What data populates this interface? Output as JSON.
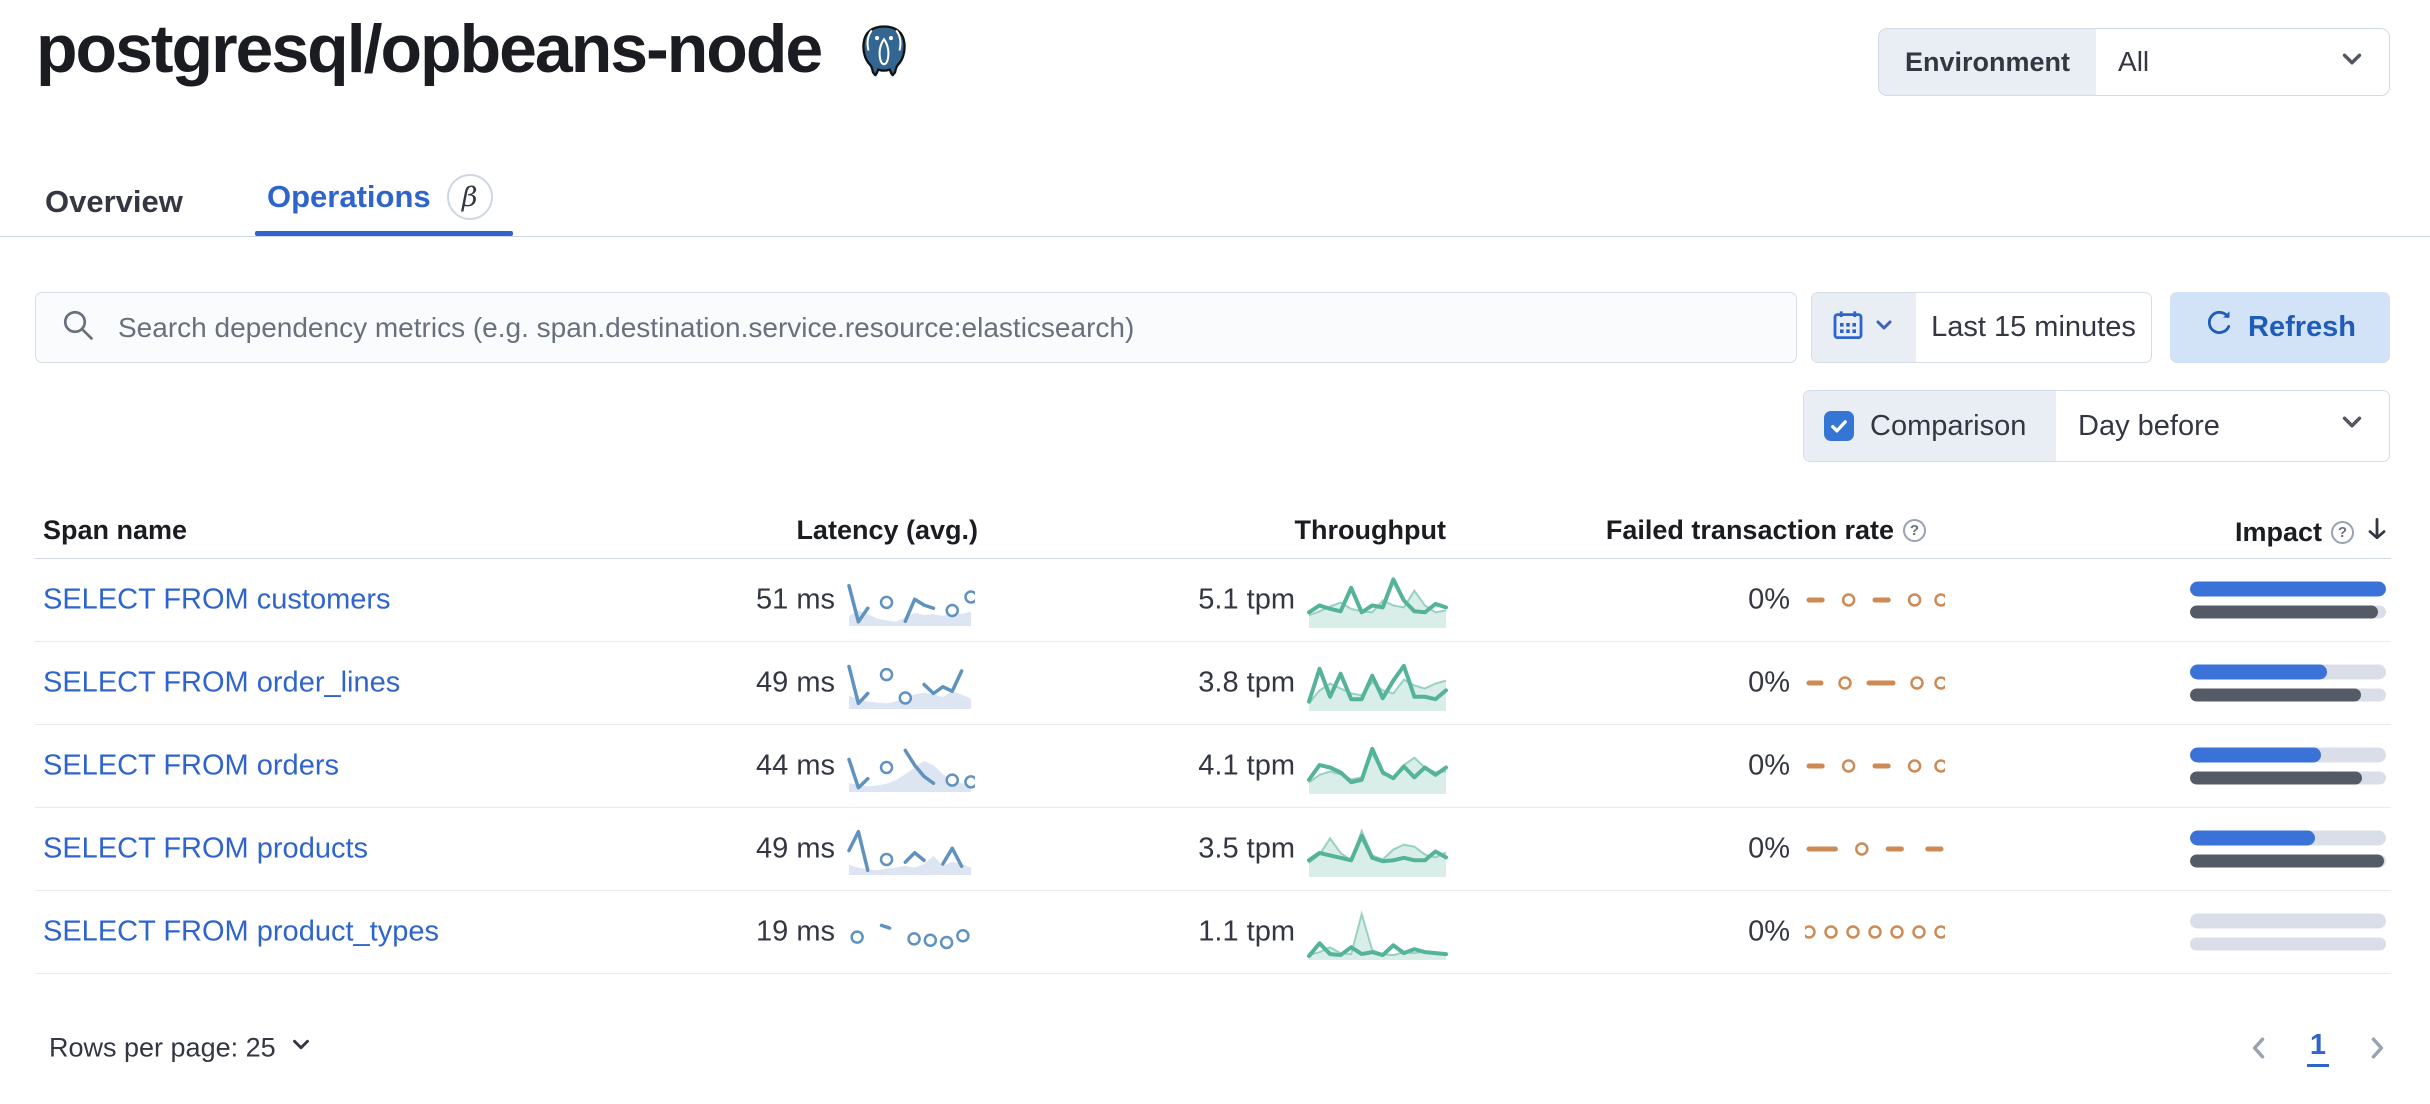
{
  "header": {
    "title": "postgresql/opbeans-node",
    "environment_label": "Environment",
    "environment_value": "All"
  },
  "tabs": {
    "overview": "Overview",
    "operations": "Operations",
    "operations_badge": "β"
  },
  "toolbar": {
    "search_placeholder": "Search dependency metrics (e.g. span.destination.service.resource:elasticsearch)",
    "time_range": "Last 15 minutes",
    "refresh_label": "Refresh",
    "comparison_label": "Comparison",
    "comparison_checked": true,
    "comparison_value": "Day before"
  },
  "table": {
    "headers": {
      "span_name": "Span name",
      "latency": "Latency (avg.)",
      "throughput": "Throughput",
      "failed_rate": "Failed transaction rate",
      "impact": "Impact"
    },
    "rows": [
      {
        "span_name": "SELECT FROM customers",
        "latency": "51 ms",
        "throughput": "5.1 tpm",
        "failed_rate": "0%",
        "latency_spark": {
          "line": [
            85,
            5,
            35,
            null,
            48,
            null,
            6,
            55,
            42,
            35,
            null,
            30,
            null,
            60
          ],
          "area": [
            18,
            30,
            22,
            12,
            8,
            5,
            15,
            25,
            20,
            22,
            18,
            25,
            22,
            28
          ]
        },
        "throughput_spark": {
          "line": [
            28,
            42,
            35,
            30,
            78,
            28,
            42,
            38,
            95,
            52,
            30,
            28,
            45,
            38
          ],
          "area": [
            22,
            30,
            40,
            48,
            35,
            30,
            28,
            52,
            42,
            38,
            72,
            42,
            28,
            32
          ]
        },
        "failed_spark": {
          "line": [
            0,
            0,
            null,
            0,
            null,
            0,
            0,
            null,
            0,
            null,
            0
          ]
        },
        "impact": {
          "current": 100,
          "previous": 96
        }
      },
      {
        "span_name": "SELECT FROM order_lines",
        "latency": "49 ms",
        "throughput": "3.8 tpm",
        "failed_rate": "0%",
        "latency_spark": {
          "line": [
            90,
            8,
            30,
            null,
            72,
            null,
            20,
            null,
            50,
            30,
            45,
            35,
            80,
            null
          ],
          "area": [
            25,
            18,
            12,
            10,
            8,
            12,
            20,
            28,
            32,
            28,
            22,
            35,
            28,
            18
          ]
        },
        "throughput_spark": {
          "line": [
            15,
            82,
            25,
            72,
            20,
            20,
            68,
            22,
            58,
            88,
            25,
            25,
            20,
            38
          ],
          "area": [
            12,
            38,
            52,
            42,
            32,
            28,
            55,
            38,
            32,
            60,
            48,
            42,
            52,
            58
          ]
        },
        "failed_spark": {
          "line": [
            0,
            0,
            null,
            0,
            null,
            0,
            0,
            0,
            null,
            0,
            null,
            0
          ]
        },
        "impact": {
          "current": 70,
          "previous": 87
        }
      },
      {
        "span_name": "SELECT FROM orders",
        "latency": "44 ms",
        "throughput": "4.1 tpm",
        "failed_rate": "0%",
        "latency_spark": {
          "line": [
            68,
            5,
            25,
            null,
            50,
            null,
            88,
            55,
            30,
            15,
            null,
            22,
            null,
            18
          ],
          "area": [
            15,
            12,
            8,
            10,
            14,
            22,
            35,
            50,
            65,
            55,
            35,
            22,
            15,
            10
          ]
        },
        "throughput_spark": {
          "line": [
            25,
            55,
            50,
            40,
            20,
            25,
            88,
            40,
            28,
            52,
            30,
            50,
            35,
            50
          ],
          "area": [
            20,
            35,
            42,
            36,
            26,
            30,
            80,
            36,
            30,
            55,
            70,
            50,
            40,
            42
          ]
        },
        "failed_spark": {
          "line": [
            0,
            0,
            null,
            0,
            null,
            0,
            0,
            null,
            0,
            null,
            0
          ]
        },
        "impact": {
          "current": 67,
          "previous": 88
        }
      },
      {
        "span_name": "SELECT FROM products",
        "latency": "49 ms",
        "throughput": "3.5 tpm",
        "failed_rate": "0%",
        "latency_spark": {
          "line": [
            50,
            92,
            6,
            null,
            30,
            null,
            24,
            45,
            28,
            null,
            20,
            55,
            15,
            null
          ],
          "area": [
            18,
            12,
            8,
            6,
            10,
            12,
            16,
            12,
            20,
            38,
            16,
            25,
            20,
            12
          ]
        },
        "throughput_spark": {
          "line": [
            30,
            45,
            40,
            35,
            30,
            80,
            35,
            28,
            30,
            35,
            30,
            30,
            48,
            36
          ],
          "area": [
            25,
            42,
            75,
            45,
            30,
            90,
            40,
            32,
            52,
            62,
            58,
            42,
            36,
            46
          ]
        },
        "failed_spark": {
          "line": [
            0,
            0,
            0,
            null,
            0,
            null,
            0,
            0,
            null,
            0,
            0
          ]
        },
        "impact": {
          "current": 64,
          "previous": 99
        }
      },
      {
        "span_name": "SELECT FROM product_types",
        "latency": "19 ms",
        "throughput": "1.1 tpm",
        "failed_rate": "0%",
        "latency_spark": {
          "line": [
            null,
            42,
            null,
            null,
            68,
            62,
            null,
            null,
            38,
            null,
            35,
            null,
            30,
            null,
            45,
            null
          ],
          "area": null
        },
        "throughput_spark": {
          "line": [
            4,
            30,
            8,
            6,
            22,
            8,
            12,
            6,
            26,
            10,
            18,
            12,
            10,
            8
          ],
          "area": [
            6,
            12,
            22,
            10,
            8,
            90,
            16,
            8,
            6,
            12,
            10,
            14,
            8,
            6
          ]
        },
        "failed_spark": {
          "line": [
            0,
            null,
            0,
            null,
            0,
            null,
            0,
            null,
            0,
            null,
            0,
            null,
            0
          ]
        },
        "impact": {
          "current": 0,
          "previous": 0
        }
      }
    ]
  },
  "footer": {
    "rows_per_page": "Rows per page: 25",
    "page": "1"
  },
  "colors": {
    "primary": "#2e64cc",
    "latency_line": "#6092c0",
    "latency_area": "#dce5f1",
    "throughput_line": "#54b399",
    "failed_line": "#cd8a55",
    "impact_current": "#3a72d8",
    "impact_previous": "#555b66"
  }
}
